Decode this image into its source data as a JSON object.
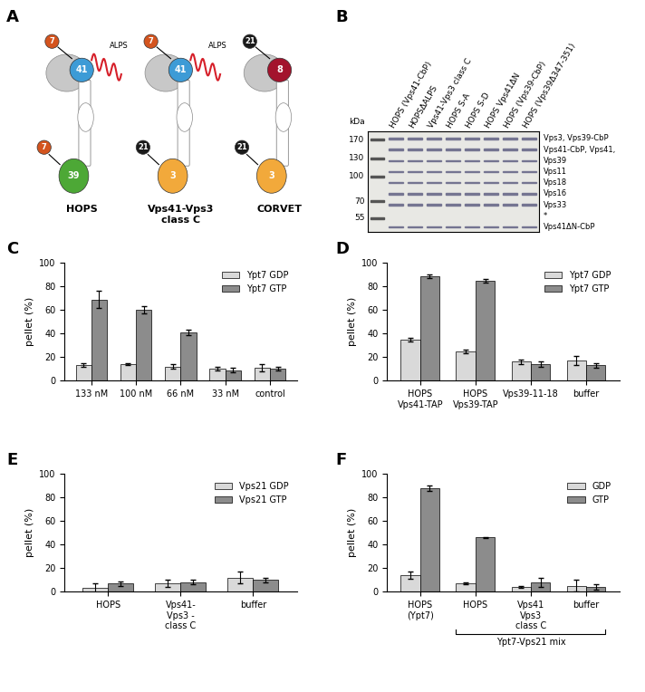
{
  "panel_labels": [
    "A",
    "B",
    "C",
    "D",
    "E",
    "F"
  ],
  "diagram": {
    "complexes": [
      {
        "name": "HOPS",
        "top_ligand": "7",
        "top_ligand_color": "#d4541e",
        "top_subunit": "41",
        "top_color": "#3d9bd6",
        "motif": "ALPS",
        "bottom_subunit": "39",
        "bottom_color": "#4da836",
        "bottom_ligand": "7",
        "bottom_ligand_color": "#d4541e"
      },
      {
        "name": "Vps41-Vps3\nclass C",
        "top_ligand": "7",
        "top_ligand_color": "#d4541e",
        "top_subunit": "41",
        "top_color": "#3d9bd6",
        "motif": "ALPS",
        "bottom_subunit": "3",
        "bottom_color": "#f2a93b",
        "bottom_ligand": "21",
        "bottom_ligand_color": "#1a1a1a"
      },
      {
        "name": "CORVET",
        "top_ligand": "21",
        "top_ligand_color": "#1a1a1a",
        "top_subunit": "8",
        "top_color": "#a3132d",
        "bottom_subunit": "3",
        "bottom_color": "#f2a93b",
        "bottom_ligand": "21",
        "bottom_ligand_color": "#1a1a1a"
      }
    ]
  },
  "gel": {
    "unit": "kDa",
    "markers": [
      170,
      130,
      100,
      70,
      55
    ],
    "lanes": [
      "HOPS (Vps41-CbP)",
      "HOPSΔALPS",
      "Vps41-Vps3 class C",
      "HOPS S-A",
      "HOPS S-D",
      "HOPS Vps41ΔN",
      "HOPS (Vps39-CbP)",
      "HOPS (Vps39Δ347-351)"
    ],
    "bands": [
      "Vps3, Vps39-CbP",
      "Vps41-CbP, Vps41,",
      "Vps39",
      "Vps11",
      "Vps18",
      "Vps16",
      "Vps33",
      "*",
      "Vps41ΔN-CbP"
    ]
  },
  "chart_data": [
    {
      "type": "bar",
      "y_label": "pellet (%)",
      "categories": [
        "133 nM",
        "100 nM",
        "66 nM",
        "33 nM",
        "control"
      ],
      "series": [
        {
          "name": "Ypt7 GDP",
          "color": "#d9d9d9",
          "values": [
            13,
            14,
            12,
            10,
            11
          ],
          "errors": [
            1.5,
            0.5,
            2,
            1.5,
            3
          ]
        },
        {
          "name": "Ypt7 GTP",
          "color": "#8c8c8c",
          "values": [
            69,
            60,
            41,
            9,
            10
          ],
          "errors": [
            7,
            3,
            2.5,
            2,
            1.5
          ]
        }
      ],
      "ylim": [
        0,
        100
      ],
      "yticks": [
        0,
        20,
        40,
        60,
        80,
        100
      ],
      "legend": "upper right"
    },
    {
      "type": "bar",
      "y_label": "pellet (%)",
      "categories": [
        "HOPS\nVps41-TAP",
        "HOPS\nVps39-TAP",
        "Vps39-11-18",
        "buffer"
      ],
      "series": [
        {
          "name": "Ypt7 GDP",
          "color": "#d9d9d9",
          "values": [
            35,
            25,
            16,
            17
          ],
          "errors": [
            1.5,
            1.5,
            2,
            4
          ]
        },
        {
          "name": "Ypt7 GTP",
          "color": "#8c8c8c",
          "values": [
            89,
            85,
            14,
            13
          ],
          "errors": [
            1.5,
            1.5,
            2,
            2
          ]
        }
      ],
      "ylim": [
        0,
        100
      ],
      "yticks": [
        0,
        20,
        40,
        60,
        80,
        100
      ],
      "legend": "upper right"
    },
    {
      "type": "bar",
      "y_label": "pellet (%)",
      "categories": [
        "HOPS",
        "Vps41-\nVps3 -\nclass C",
        "buffer"
      ],
      "series": [
        {
          "name": "Vps21 GDP",
          "color": "#d9d9d9",
          "values": [
            3,
            7,
            12
          ],
          "errors": [
            4,
            3,
            5
          ]
        },
        {
          "name": "Vps21 GTP",
          "color": "#8c8c8c",
          "values": [
            7,
            8,
            10
          ],
          "errors": [
            2,
            2,
            2
          ]
        }
      ],
      "ylim": [
        0,
        100
      ],
      "yticks": [
        0,
        20,
        40,
        60,
        80,
        100
      ],
      "legend": "upper right"
    },
    {
      "type": "bar",
      "y_label": "pellet (%)",
      "categories": [
        "HOPS\n(Ypt7)",
        "HOPS",
        "Vps41\nVps3\nclass C",
        "buffer"
      ],
      "series": [
        {
          "name": "GDP",
          "color": "#d9d9d9",
          "values": [
            14,
            7,
            4,
            5
          ],
          "errors": [
            3,
            1,
            1,
            5
          ]
        },
        {
          "name": "GTP",
          "color": "#8c8c8c",
          "values": [
            88,
            46,
            8,
            4
          ],
          "errors": [
            2.5,
            0.5,
            4,
            2
          ]
        }
      ],
      "ylim": [
        0,
        100
      ],
      "yticks": [
        0,
        20,
        40,
        60,
        80,
        100
      ],
      "legend": "upper right",
      "bracket": {
        "text": "Ypt7-Vps21 mix",
        "from": "HOPS",
        "to": "buffer"
      }
    }
  ]
}
